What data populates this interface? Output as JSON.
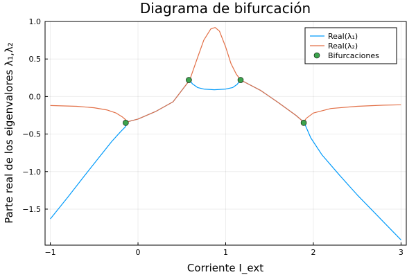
{
  "chart_data": {
    "type": "line",
    "title": "Diagrama de bifurcación",
    "xlabel": "Corriente I_ext",
    "ylabel": "Parte real de los eigenvalores λ₁,λ₂",
    "xlim": [
      -1.06,
      3.06
    ],
    "ylim": [
      -1.98,
      1.0
    ],
    "xticks": [
      -1,
      0,
      1,
      2,
      3
    ],
    "xtick_labels": [
      "−1",
      "0",
      "1",
      "2",
      "3"
    ],
    "yticks": [
      1.0,
      0.5,
      0.0,
      -0.5,
      -1.0,
      -1.5
    ],
    "ytick_labels": [
      "1.0",
      "0.5",
      "0.0",
      "−0.5",
      "−1.0",
      "−1.5"
    ],
    "grid": true,
    "legend_position": "top-right",
    "series": [
      {
        "name": "Real(λ₁)",
        "color": "#009AFA",
        "x": [
          -1.0,
          -0.8,
          -0.6,
          -0.45,
          -0.3,
          -0.2,
          -0.14,
          -0.13,
          0.0,
          0.2,
          0.4,
          0.59,
          0.62,
          0.68,
          0.75,
          0.87,
          1.0,
          1.08,
          1.13,
          1.17,
          1.4,
          1.6,
          1.8,
          1.89,
          1.9,
          1.97,
          2.1,
          2.3,
          2.5,
          2.7,
          2.85,
          3.0
        ],
        "y": [
          -1.63,
          -1.34,
          -1.04,
          -0.82,
          -0.6,
          -0.47,
          -0.4,
          -0.34,
          -0.3,
          -0.2,
          -0.07,
          0.22,
          0.17,
          0.12,
          0.1,
          0.09,
          0.1,
          0.12,
          0.16,
          0.22,
          0.08,
          -0.08,
          -0.25,
          -0.34,
          -0.36,
          -0.55,
          -0.78,
          -1.05,
          -1.31,
          -1.55,
          -1.73,
          -1.91
        ]
      },
      {
        "name": "Real(λ₂)",
        "color": "#E26F46",
        "x": [
          -1.0,
          -0.7,
          -0.5,
          -0.35,
          -0.25,
          -0.18,
          -0.14,
          -0.13,
          0.0,
          0.2,
          0.4,
          0.59,
          0.62,
          0.68,
          0.75,
          0.83,
          0.88,
          0.93,
          1.0,
          1.06,
          1.12,
          1.17,
          1.4,
          1.6,
          1.8,
          1.89,
          1.92,
          2.0,
          2.2,
          2.5,
          2.8,
          3.0
        ],
        "y": [
          -0.12,
          -0.13,
          -0.15,
          -0.18,
          -0.22,
          -0.27,
          -0.31,
          -0.34,
          -0.3,
          -0.2,
          -0.07,
          0.22,
          0.32,
          0.52,
          0.75,
          0.9,
          0.92,
          0.87,
          0.66,
          0.44,
          0.3,
          0.22,
          0.08,
          -0.08,
          -0.25,
          -0.34,
          -0.29,
          -0.22,
          -0.16,
          -0.13,
          -0.115,
          -0.11
        ]
      },
      {
        "name": "Bifurcaciones",
        "color": "#3DA44D",
        "marker": "circle",
        "x": [
          -0.14,
          0.58,
          1.17,
          1.89
        ],
        "y": [
          -0.35,
          0.22,
          0.22,
          -0.35
        ]
      }
    ]
  }
}
